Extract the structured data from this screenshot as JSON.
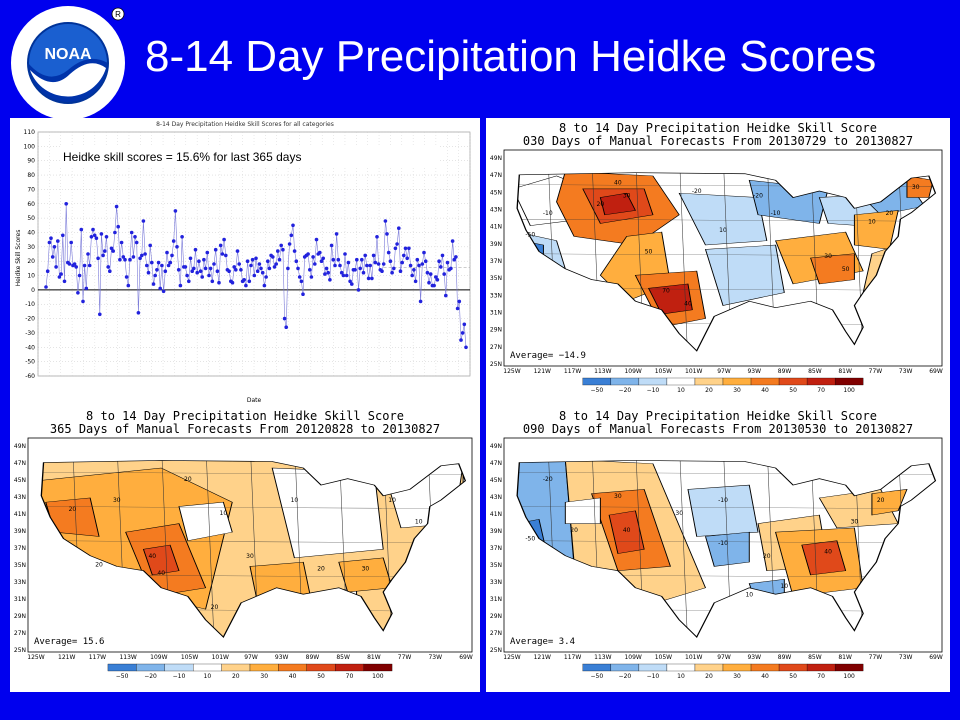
{
  "slide": {
    "title": "8-14 Day Precipitation Heidke Scores",
    "logo_text": "NOAA",
    "logo_ring_text": "NATIONAL OCEANIC AND ATMOSPHERIC ADMINISTRATION · U.S. DEPARTMENT OF COMMERCE"
  },
  "colors": {
    "background": "#0000ee",
    "title": "#ffffff"
  },
  "chart_data": [
    {
      "type": "line",
      "title": "8-14 Day Precipitation Heidke Skill Scores for all categories",
      "annotation": "Heidke skill scores = 15.6% for last 365 days",
      "xlabel": "Date",
      "ylabel": "Heidke Skill Scores",
      "ylim": [
        -60,
        110
      ],
      "yticks": [
        110,
        100,
        90,
        80,
        70,
        60,
        50,
        40,
        30,
        20,
        10,
        0,
        -10,
        -20,
        -30,
        -40,
        -50,
        -60
      ],
      "series": [
        {
          "color": "#2222dd",
          "values": [
            2,
            13,
            33,
            36,
            23,
            30,
            16,
            34,
            9,
            11,
            38,
            6,
            60,
            19,
            18,
            33,
            17,
            18,
            16,
            -2,
            10,
            42,
            -8,
            17,
            1,
            25,
            17,
            37,
            42,
            38,
            36,
            22,
            -17,
            39,
            24,
            27,
            37,
            16,
            13,
            29,
            27,
            40,
            58,
            44,
            21,
            33,
            23,
            21,
            9,
            3,
            21,
            40,
            23,
            37,
            33,
            -16,
            22,
            24,
            48,
            25,
            17,
            12,
            31,
            19,
            4,
            10,
            14,
            19,
            1,
            17,
            -1,
            13,
            26,
            17,
            19,
            24,
            34,
            55,
            30,
            14,
            3,
            37,
            16,
            16,
            10,
            6,
            22,
            13,
            15,
            28,
            12,
            20,
            13,
            9,
            21,
            15,
            26,
            10,
            15,
            6,
            18,
            28,
            13,
            5,
            31,
            25,
            35,
            24,
            14,
            13,
            6,
            5,
            16,
            14,
            27,
            18,
            14,
            6,
            7,
            3,
            20,
            6,
            17,
            21,
            10,
            22,
            13,
            18,
            15,
            12,
            3,
            9,
            20,
            15,
            24,
            23,
            16,
            18,
            27,
            21,
            31,
            28,
            -20,
            -26,
            15,
            32,
            38,
            45,
            27,
            20,
            15,
            9,
            6,
            -3,
            23,
            24,
            25,
            14,
            9,
            23,
            18,
            35,
            25,
            26,
            20,
            22,
            11,
            15,
            12,
            7,
            31,
            21,
            17,
            39,
            21,
            17,
            12,
            10,
            25,
            10,
            19,
            6,
            4,
            14,
            14,
            21,
            0,
            15,
            21,
            12,
            24,
            17,
            8,
            17,
            8,
            24,
            19,
            37,
            18,
            14,
            13,
            18,
            48,
            39,
            26,
            20,
            12,
            15,
            29,
            32,
            43,
            13,
            19,
            24,
            29,
            22,
            29,
            17,
            10,
            14,
            6,
            21,
            17,
            -8,
            18,
            26,
            20,
            12,
            5,
            11,
            3,
            3,
            9,
            7,
            20,
            16,
            24,
            11,
            -4,
            19,
            14,
            15,
            34,
            21,
            23,
            -13,
            -8,
            -35,
            -30,
            -24,
            -40
          ]
        }
      ]
    },
    {
      "type": "heatmap",
      "title_line1": "8 to 14 Day Precipitation Heidke Skill Score",
      "title_line2": "030 Days of Manual Forecasts From 20130729 to 20130827",
      "average_label": "Average= −14.9",
      "lat_ticks": [
        "49N",
        "47N",
        "45N",
        "43N",
        "41N",
        "39N",
        "37N",
        "35N",
        "33N",
        "31N",
        "29N",
        "27N",
        "25N"
      ],
      "lon_ticks": [
        "125W",
        "121W",
        "117W",
        "113W",
        "109W",
        "105W",
        "101W",
        "97W",
        "93W",
        "89W",
        "85W",
        "81W",
        "77W",
        "73W",
        "69W"
      ],
      "legend_levels": [
        "−50",
        "−20",
        "−10",
        "10",
        "20",
        "30",
        "40",
        "50",
        "70",
        "100"
      ],
      "legend_colors": [
        "#3a7fd5",
        "#7fb4ea",
        "#bfdcf7",
        "#ffffff",
        "#ffd28a",
        "#ffae3e",
        "#f47b20",
        "#e0491a",
        "#c02010",
        "#800000"
      ],
      "contour_labels": [
        "-50",
        "-10",
        "40",
        "20",
        "30",
        "50",
        "-20",
        "10",
        "70",
        "40",
        "-10",
        "30",
        "50",
        "10",
        "20",
        "-20",
        "30"
      ]
    },
    {
      "type": "heatmap",
      "title_line1": "8 to 14 Day Precipitation Heidke Skill Score",
      "title_line2": "365 Days of Manual Forecasts From 20120828 to 20130827",
      "average_label": "Average= 15.6",
      "lat_ticks": [
        "49N",
        "47N",
        "45N",
        "43N",
        "41N",
        "39N",
        "37N",
        "35N",
        "33N",
        "31N",
        "29N",
        "27N",
        "25N"
      ],
      "lon_ticks": [
        "125W",
        "121W",
        "117W",
        "113W",
        "109W",
        "105W",
        "101W",
        "97W",
        "93W",
        "89W",
        "85W",
        "81W",
        "77W",
        "73W",
        "69W"
      ],
      "legend_levels": [
        "−50",
        "−20",
        "−10",
        "10",
        "20",
        "30",
        "40",
        "50",
        "70",
        "100"
      ],
      "legend_colors": [
        "#3a7fd5",
        "#7fb4ea",
        "#bfdcf7",
        "#ffffff",
        "#ffd28a",
        "#ffae3e",
        "#f47b20",
        "#e0491a",
        "#c02010",
        "#800000"
      ],
      "contour_labels": [
        "20",
        "30",
        "40",
        "20",
        "10",
        "30",
        "40",
        "20",
        "10",
        "20",
        "30",
        "10",
        "20",
        "10"
      ]
    },
    {
      "type": "heatmap",
      "title_line1": "8 to 14 Day Precipitation Heidke Skill Score",
      "title_line2": "090 Days of Manual Forecasts From 20130530 to 20130827",
      "average_label": "Average= 3.4",
      "lat_ticks": [
        "49N",
        "47N",
        "45N",
        "43N",
        "41N",
        "39N",
        "37N",
        "35N",
        "33N",
        "31N",
        "29N",
        "27N",
        "25N"
      ],
      "lon_ticks": [
        "125W",
        "121W",
        "117W",
        "113W",
        "109W",
        "105W",
        "101W",
        "97W",
        "93W",
        "89W",
        "85W",
        "81W",
        "77W",
        "73W",
        "69W"
      ],
      "legend_levels": [
        "−50",
        "−20",
        "−10",
        "10",
        "20",
        "30",
        "40",
        "50",
        "70",
        "100"
      ],
      "legend_colors": [
        "#3a7fd5",
        "#7fb4ea",
        "#bfdcf7",
        "#ffffff",
        "#ffd28a",
        "#ffae3e",
        "#f47b20",
        "#e0491a",
        "#c02010",
        "#800000"
      ],
      "contour_labels": [
        "-50",
        "-20",
        "30",
        "20",
        "40",
        "30",
        "-10",
        "20",
        "10",
        "40",
        "30",
        "20",
        "-10",
        "10"
      ]
    }
  ]
}
